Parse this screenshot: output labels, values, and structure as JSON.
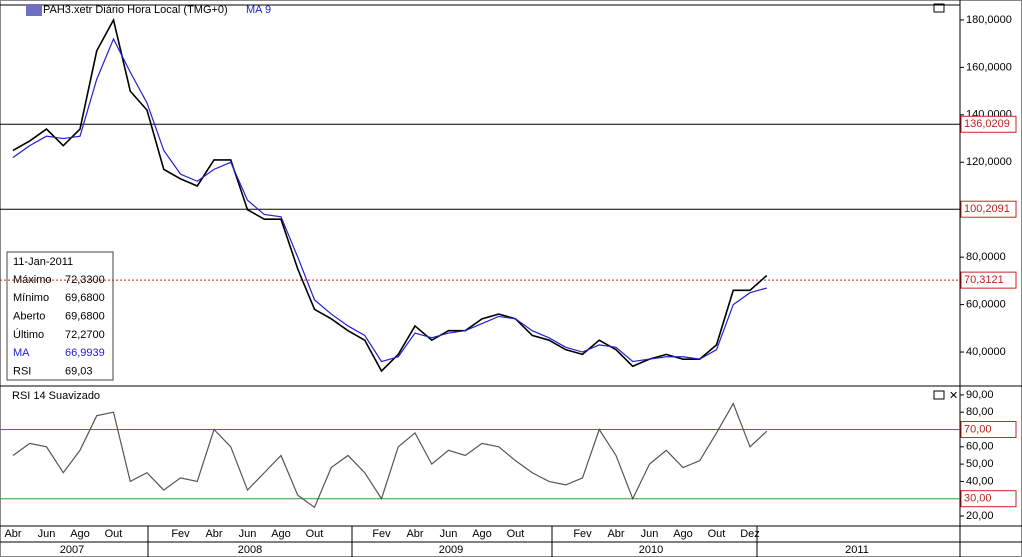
{
  "chart_data": [
    {
      "type": "line",
      "title": "PAH3.xetr Diário Hora Local (TMG+0)",
      "categories": [
        "Abr",
        null,
        "Jun",
        null,
        "Ago",
        null,
        "Out",
        null,
        null,
        null,
        "Fev",
        null,
        "Abr",
        null,
        "Jun",
        null,
        "Ago",
        null,
        "Out",
        null,
        null,
        null,
        "Fev",
        null,
        "Abr",
        null,
        "Jun",
        null,
        "Ago",
        null,
        "Out",
        null,
        null,
        null,
        "Fev",
        null,
        "Abr",
        null,
        "Jun",
        null,
        "Ago",
        null,
        "Out",
        null,
        "Dez",
        null
      ],
      "year_labels": [
        "2007",
        "2008",
        "2009",
        "2010",
        "2011"
      ],
      "series": [
        {
          "name": "PAH3.xetr",
          "color": "#000000",
          "values": [
            125,
            129,
            134,
            127,
            134,
            167,
            180,
            150,
            142,
            117,
            113,
            110,
            121,
            121,
            100,
            96,
            96,
            75,
            58,
            54,
            49,
            45,
            32,
            39,
            51,
            45,
            49,
            49,
            54,
            56,
            54,
            47,
            45,
            41,
            39,
            45,
            41,
            34,
            37,
            39,
            37,
            37,
            43,
            66,
            66,
            72.27
          ]
        },
        {
          "name": "MA 9",
          "color": "#2020d0",
          "values": [
            122,
            127,
            131,
            130,
            131,
            155,
            172,
            158,
            145,
            125,
            115,
            112,
            117,
            120,
            104,
            98,
            97,
            80,
            62,
            56,
            51,
            47,
            36,
            38,
            48,
            46,
            48,
            49,
            52,
            55,
            54,
            49,
            46,
            42,
            40,
            43,
            42,
            36,
            37,
            38,
            38,
            37,
            41,
            60,
            65,
            66.9939
          ]
        }
      ],
      "levels": [
        {
          "value": 136.0209,
          "label": "136,0209"
        },
        {
          "value": 100.2091,
          "label": "100,2091"
        },
        {
          "value": 70.3121,
          "label": "70,3121"
        }
      ],
      "ylim": [
        26.1,
        186.3
      ],
      "yticks": [
        {
          "value": 40,
          "label": "40,0000"
        },
        {
          "value": 60,
          "label": "60,0000"
        },
        {
          "value": 80,
          "label": "80,0000"
        },
        {
          "value": 100,
          "label": "100,0000"
        },
        {
          "value": 120,
          "label": "120,0000"
        },
        {
          "value": 140,
          "label": "140,0000"
        },
        {
          "value": 160,
          "label": "160,0000"
        },
        {
          "value": 180,
          "label": "180,0000"
        }
      ],
      "info_box": {
        "date": "11-Jan-2011",
        "rows": [
          [
            "Máximo",
            "72,3300"
          ],
          [
            "Mínimo",
            "69,6800"
          ],
          [
            "Aberto",
            "69,6800"
          ],
          [
            "Último",
            "72,2700"
          ],
          [
            "MA",
            "66,9939"
          ],
          [
            "RSI",
            "69,03"
          ]
        ]
      }
    },
    {
      "type": "line",
      "title": "RSI 14 Suavizado",
      "series": [
        {
          "name": "RSI 14",
          "color": "#555555",
          "values": [
            55,
            62,
            60,
            45,
            58,
            78,
            80,
            40,
            45,
            35,
            42,
            40,
            70,
            60,
            35,
            45,
            55,
            32,
            25,
            48,
            55,
            45,
            30,
            60,
            68,
            50,
            58,
            55,
            62,
            60,
            52,
            45,
            40,
            38,
            42,
            70,
            55,
            30,
            50,
            58,
            48,
            52,
            68,
            85,
            60,
            69.03
          ]
        }
      ],
      "levels": [
        {
          "value": 70,
          "label": "70,00",
          "color": "#e03030"
        },
        {
          "value": 30,
          "label": "30,00",
          "color": "#30a030"
        }
      ],
      "ylim": [
        14.8,
        94
      ],
      "yticks": [
        {
          "value": 20,
          "label": "20,00"
        },
        {
          "value": 30,
          "label": "30,00"
        },
        {
          "value": 40,
          "label": "40,00"
        },
        {
          "value": 50,
          "label": "50,00"
        },
        {
          "value": 60,
          "label": "60,00"
        },
        {
          "value": 70,
          "label": "70,00"
        },
        {
          "value": 80,
          "label": "80,00"
        },
        {
          "value": 90,
          "label": "90,00"
        }
      ]
    }
  ]
}
